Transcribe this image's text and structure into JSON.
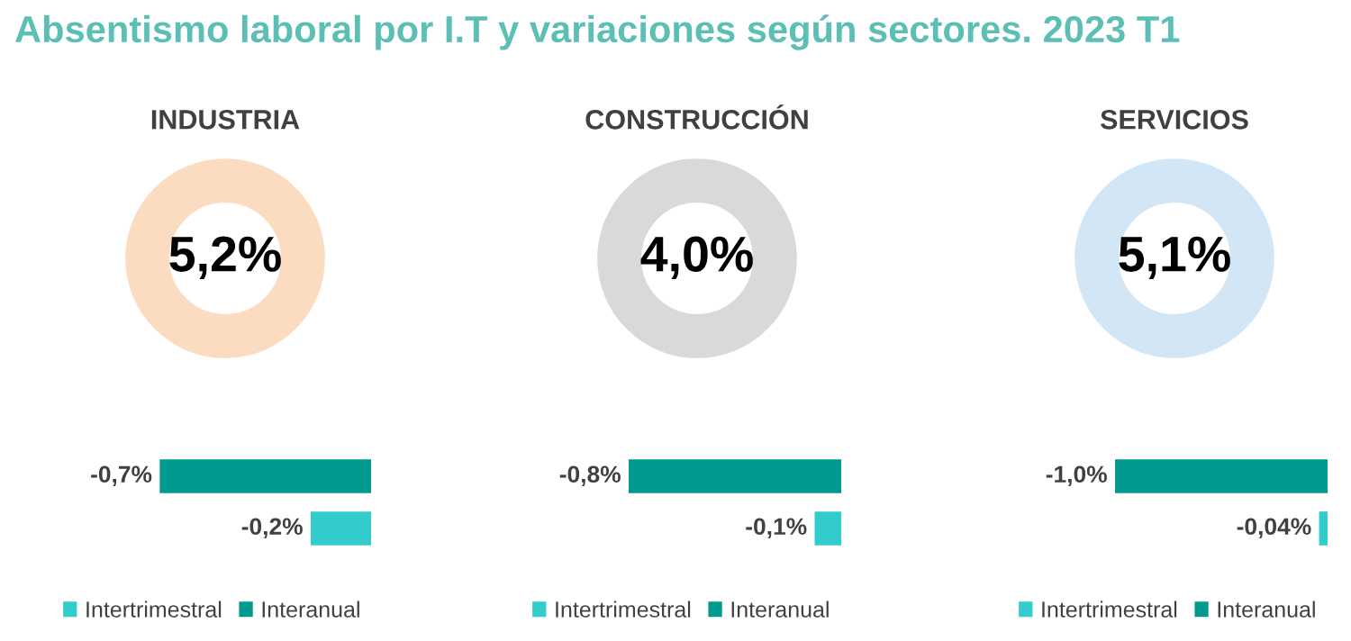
{
  "chart_data": [
    {
      "type": "other",
      "title": "Absentismo laboral por I.T y variaciones según sectores. 2023 T1"
    },
    {
      "type": "donut",
      "title": "INDUSTRIA",
      "categories": [
        null
      ],
      "values": [
        100
      ],
      "colors": [
        "#fcdcc0"
      ],
      "annotations": [
        "5,2%"
      ]
    },
    {
      "type": "donut",
      "title": "CONSTRUCCIÓN",
      "categories": [
        null
      ],
      "values": [
        100
      ],
      "colors": [
        "#d9d9d9"
      ],
      "annotations": [
        "4,0%"
      ]
    },
    {
      "type": "donut",
      "title": "SERVICIOS",
      "categories": [
        null
      ],
      "values": [
        100
      ],
      "colors": [
        "#d2e6f5"
      ],
      "annotations": [
        "5,1%"
      ]
    },
    {
      "type": "bar",
      "orientation": "horizontal",
      "categories": [
        null
      ],
      "tick_labels": false,
      "legend": "bottom",
      "series": [
        {
          "name": "Interanual",
          "color": "#009a91",
          "values": [
            -0.7
          ],
          "value_labels": [
            "-0,7%"
          ]
        },
        {
          "name": "Intertrimestral",
          "color": "#33cccc",
          "values": [
            -0.2
          ],
          "value_labels": [
            "-0,2%"
          ]
        }
      ]
    },
    {
      "type": "bar",
      "orientation": "horizontal",
      "categories": [
        null
      ],
      "tick_labels": false,
      "legend": "bottom",
      "series": [
        {
          "name": "Interanual",
          "color": "#009a91",
          "values": [
            -0.8
          ],
          "value_labels": [
            "-0,8%"
          ]
        },
        {
          "name": "Intertrimestral",
          "color": "#33cccc",
          "values": [
            -0.1
          ],
          "value_labels": [
            "-0,1%"
          ]
        }
      ]
    },
    {
      "type": "bar",
      "orientation": "horizontal",
      "categories": [
        null
      ],
      "tick_labels": false,
      "legend": "bottom",
      "series": [
        {
          "name": "Interanual",
          "color": "#009a91",
          "values": [
            -1.0
          ],
          "value_labels": [
            "-1,0%"
          ]
        },
        {
          "name": "Intertrimestral",
          "color": "#33cccc",
          "values": [
            -0.04
          ],
          "value_labels": [
            "-0,04%"
          ]
        }
      ]
    }
  ]
}
